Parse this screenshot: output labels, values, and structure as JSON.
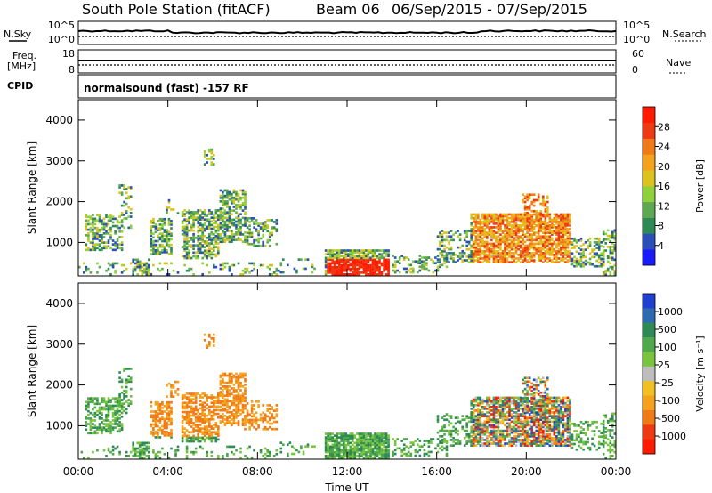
{
  "header": {
    "station": "South Pole Station (fitACF)",
    "beam": "Beam 06",
    "dates": "06/Sep/2015 - 07/Sep/2015"
  },
  "top_panels": {
    "nsky_label": "N.Sky",
    "nsky_ticks": [
      "10^5",
      "10^0"
    ],
    "nsearch_label": "N.Search",
    "nsearch_ticks": [
      "10^5",
      "10^0"
    ],
    "freq_label_1": "Freq.",
    "freq_label_2": "[MHz]",
    "freq_ticks": [
      "18",
      "8"
    ],
    "nave_label": "Nave",
    "nave_ticks": [
      "60",
      "0"
    ],
    "cpid_label": "CPID",
    "cpid_text": "normalsound (fast) -157 RF"
  },
  "chart_data": [
    {
      "type": "heatmap",
      "quantity": "Power",
      "ylabel": "Slant Range [km]",
      "xlabel": "Time UT",
      "x_ticks": [
        "00:00",
        "04:00",
        "08:00",
        "12:00",
        "16:00",
        "20:00",
        "00:00"
      ],
      "y_ticks": [
        1000,
        2000,
        3000,
        4000
      ],
      "ylim": [
        180,
        4500
      ],
      "xlim_hours": [
        0,
        24
      ],
      "colorbar_label": "Power [dB]",
      "colorbar_ticks": [
        "4",
        "8",
        "12",
        "16",
        "20",
        "24",
        "28"
      ],
      "colorbar_colors": [
        "#1a1aff",
        "#2b4fb8",
        "#2e8a55",
        "#5fa852",
        "#8fd13a",
        "#dcc21c",
        "#f4a21c",
        "#f07a16",
        "#ee3a12",
        "#ff1a00"
      ]
    },
    {
      "type": "heatmap",
      "quantity": "Velocity",
      "ylabel": "Slant Range [km]",
      "xlabel": "Time UT",
      "x_ticks": [
        "00:00",
        "04:00",
        "08:00",
        "12:00",
        "16:00",
        "20:00",
        "00:00"
      ],
      "y_ticks": [
        1000,
        2000,
        3000,
        4000
      ],
      "ylim": [
        180,
        4500
      ],
      "xlim_hours": [
        0,
        24
      ],
      "colorbar_label": "Velocity [m s⁻¹]",
      "colorbar_ticks": [
        "1000",
        "500",
        "100",
        "25",
        "-25",
        "-100",
        "-500",
        "-1000"
      ],
      "colorbar_colors": [
        "#2040d0",
        "#2d6ab0",
        "#2e8a55",
        "#4fa84a",
        "#79c43c",
        "#bdbdbd",
        "#f0c020",
        "#f4a21c",
        "#f07a16",
        "#ee3a12",
        "#ff1a00"
      ]
    }
  ]
}
